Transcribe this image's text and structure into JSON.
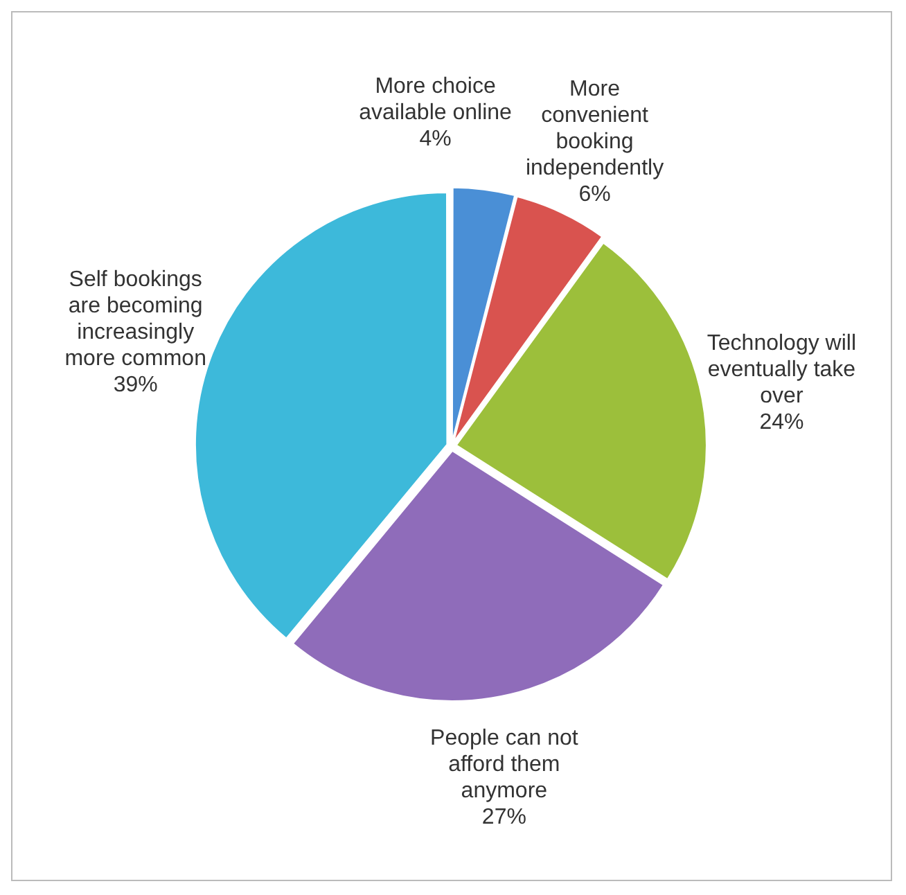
{
  "chart_data": {
    "type": "pie",
    "categories": [
      "More choice available online",
      "More convenient booking independently",
      "Technology will eventually take over",
      "People can not afford them anymore",
      "Self bookings are becoming increasingly more common"
    ],
    "values": [
      4,
      6,
      24,
      27,
      39
    ],
    "value_labels": [
      "4%",
      "6%",
      "24%",
      "27%",
      "39%"
    ],
    "colors": [
      "#4a8fd6",
      "#d9534f",
      "#9cbf3b",
      "#8f6cba",
      "#3db9da"
    ],
    "legend": false
  }
}
